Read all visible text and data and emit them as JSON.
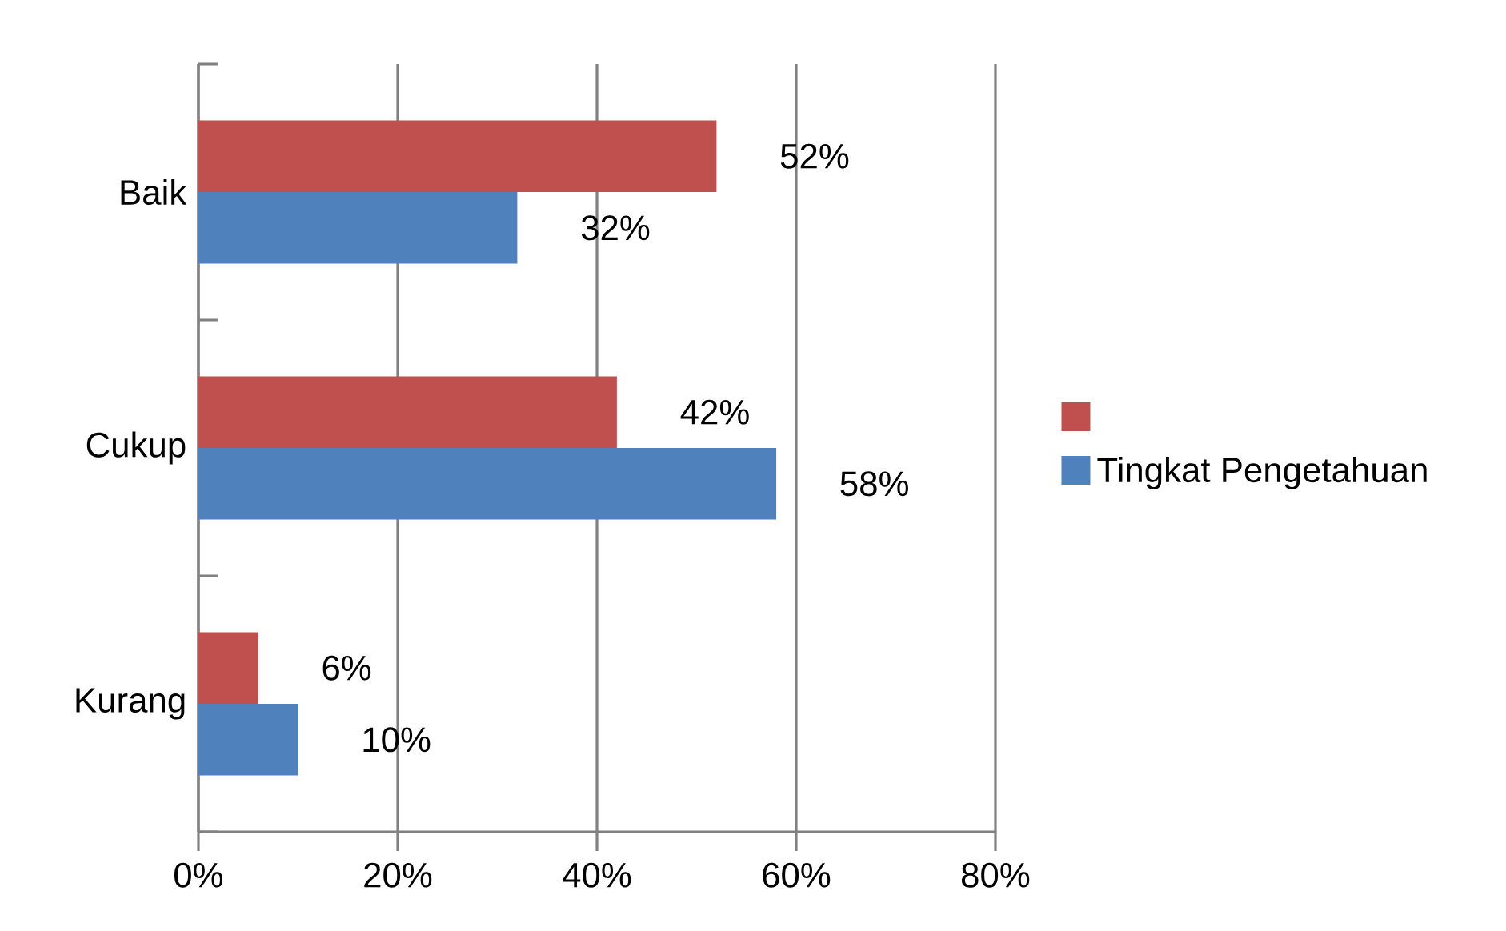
{
  "chart_data": {
    "type": "bar",
    "orientation": "horizontal",
    "categories": [
      "Baik",
      "Cukup",
      "Kurang"
    ],
    "series": [
      {
        "color": "#c0504d",
        "values": [
          52,
          42,
          6
        ],
        "value_labels": [
          "52%",
          "42%",
          "6%"
        ]
      },
      {
        "name": "Tingkat Pengetahuan",
        "color": "#4f81bd",
        "values": [
          32,
          58,
          10
        ],
        "value_labels": [
          "32%",
          "58%",
          "10%"
        ]
      }
    ],
    "xlim": [
      0,
      80
    ],
    "xticks": [
      {
        "value": 0,
        "label": "0%"
      },
      {
        "value": 20,
        "label": "20%"
      },
      {
        "value": 40,
        "label": "40%"
      },
      {
        "value": 60,
        "label": "60%"
      },
      {
        "value": 80,
        "label": "80%"
      }
    ],
    "grid": "x",
    "legend": "right"
  }
}
